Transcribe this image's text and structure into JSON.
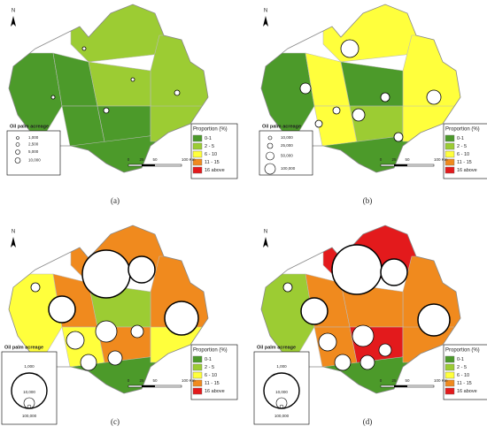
{
  "panels": [
    {
      "caption": "(a)",
      "north": "N",
      "acreage_title": "Oil palm acreage",
      "acreage_labels": [
        "1,000",
        "2,500",
        "5,000",
        "10,000"
      ],
      "proportion_title": "Proportion (%)",
      "classes": [
        {
          "label": "0-1",
          "color": "#4c9a2a"
        },
        {
          "label": "2 - 5",
          "color": "#9ccc33"
        },
        {
          "label": "6 - 10",
          "color": "#ffff3c"
        },
        {
          "label": "11 - 15",
          "color": "#f08a1e"
        },
        {
          "label": "16 above",
          "color": "#e31a1c"
        }
      ],
      "scale_labels": [
        "0",
        "25",
        "50",
        "100 Km"
      ]
    },
    {
      "caption": "(b)",
      "north": "N",
      "acreage_title": "Oil palm acreage",
      "acreage_labels": [
        "10,000",
        "25,000",
        "50,000",
        "100,000"
      ],
      "proportion_title": "Proportion (%)",
      "classes": [
        {
          "label": "0-1",
          "color": "#4c9a2a"
        },
        {
          "label": "2 - 5",
          "color": "#9ccc33"
        },
        {
          "label": "6 - 10",
          "color": "#ffff3c"
        },
        {
          "label": "11 - 15",
          "color": "#f08a1e"
        },
        {
          "label": "16 above",
          "color": "#e31a1c"
        }
      ],
      "scale_labels": [
        "0",
        "25",
        "50",
        "100 Km"
      ]
    },
    {
      "caption": "(c)",
      "north": "N",
      "acreage_title": "Oil palm acreage",
      "acreage_labels": [
        "1,000",
        "10,000",
        "100,000"
      ],
      "proportion_title": "Proportion (%)",
      "classes": [
        {
          "label": "0-1",
          "color": "#4c9a2a"
        },
        {
          "label": "2 - 5",
          "color": "#9ccc33"
        },
        {
          "label": "6 - 10",
          "color": "#ffff3c"
        },
        {
          "label": "11 - 15",
          "color": "#f08a1e"
        },
        {
          "label": "16 above",
          "color": "#e31a1c"
        }
      ],
      "scale_labels": [
        "0",
        "25",
        "50",
        "100 Km"
      ]
    },
    {
      "caption": "(d)",
      "north": "N",
      "acreage_title": "Oil palm acreage",
      "acreage_labels": [
        "1,000",
        "10,000",
        "100,000"
      ],
      "proportion_title": "Proportion (%)",
      "classes": [
        {
          "label": "0-1",
          "color": "#4c9a2a"
        },
        {
          "label": "2 - 5",
          "color": "#9ccc33"
        },
        {
          "label": "6 - 10",
          "color": "#ffff3c"
        },
        {
          "label": "11 - 15",
          "color": "#f08a1e"
        },
        {
          "label": "16 above",
          "color": "#e31a1c"
        }
      ],
      "scale_labels": [
        "0",
        "25",
        "50",
        "100 Km"
      ]
    }
  ]
}
